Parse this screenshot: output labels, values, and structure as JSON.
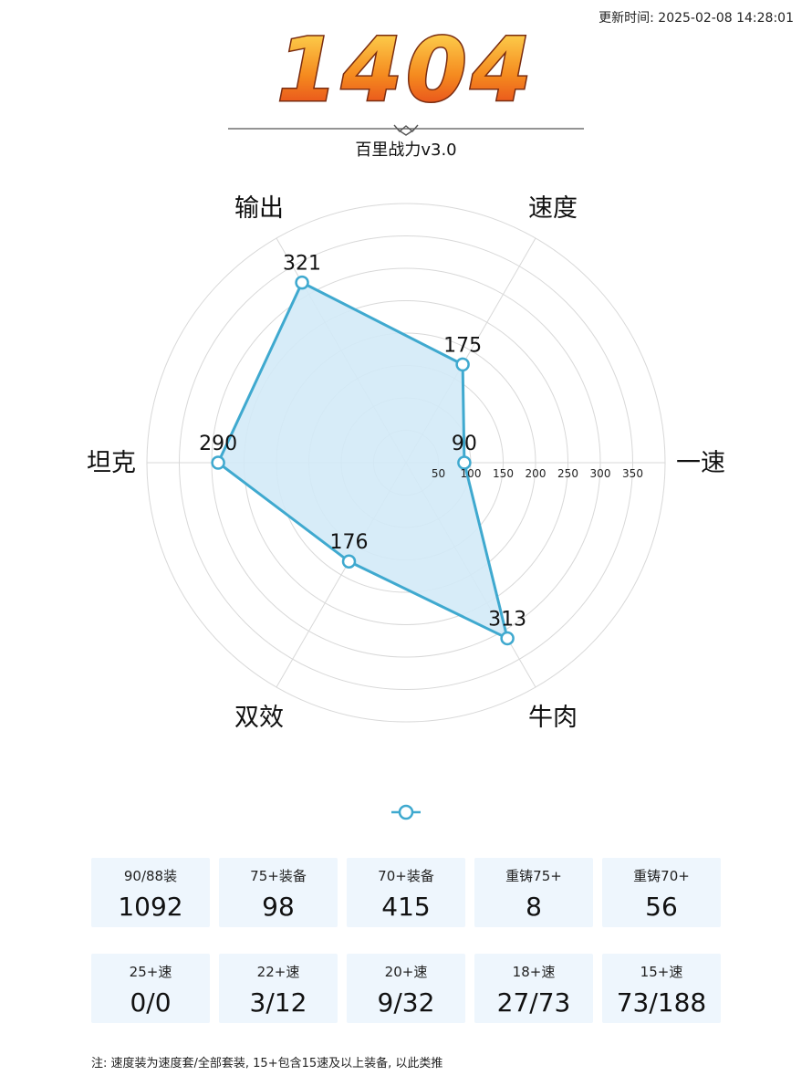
{
  "header": {
    "updated_label": "更新时间: 2025-02-08 14:28:01",
    "score": "1404",
    "subtitle": "百里战力v3.0"
  },
  "colors": {
    "score_fill_top": "#ffd84a",
    "score_fill_bottom": "#e2361a",
    "score_stroke": "#7a2c10",
    "radar_line": "#3fa9cf",
    "radar_fill": "#d3eaf7",
    "grid": "#d8d8d8",
    "card_bg": "#eef6fd"
  },
  "chart_data": {
    "type": "radar",
    "axes": [
      "速度",
      "一速",
      "牛肉",
      "双效",
      "坦克",
      "输出"
    ],
    "values": [
      175,
      90,
      313,
      176,
      290,
      321
    ],
    "rings": [
      50,
      100,
      150,
      200,
      250,
      300,
      350
    ],
    "tick_labels": [
      "50",
      "100",
      "150",
      "200",
      "250",
      "300",
      "350"
    ],
    "value_labels": [
      "175",
      "90",
      "313",
      "176",
      "290",
      "321"
    ],
    "range": [
      0,
      400
    ],
    "grid": true,
    "legend": "bottom"
  },
  "stats": {
    "row1": [
      {
        "label": "90/88装",
        "value": "1092"
      },
      {
        "label": "75+装备",
        "value": "98"
      },
      {
        "label": "70+装备",
        "value": "415"
      },
      {
        "label": "重铸75+",
        "value": "8"
      },
      {
        "label": "重铸70+",
        "value": "56"
      }
    ],
    "row2": [
      {
        "label": "25+速",
        "value": "0/0"
      },
      {
        "label": "22+速",
        "value": "3/12"
      },
      {
        "label": "20+速",
        "value": "9/32"
      },
      {
        "label": "18+速",
        "value": "27/73"
      },
      {
        "label": "15+速",
        "value": "73/188"
      }
    ]
  },
  "note": "注: 速度装为速度套/全部套装, 15+包含15速及以上装备, 以此类推"
}
